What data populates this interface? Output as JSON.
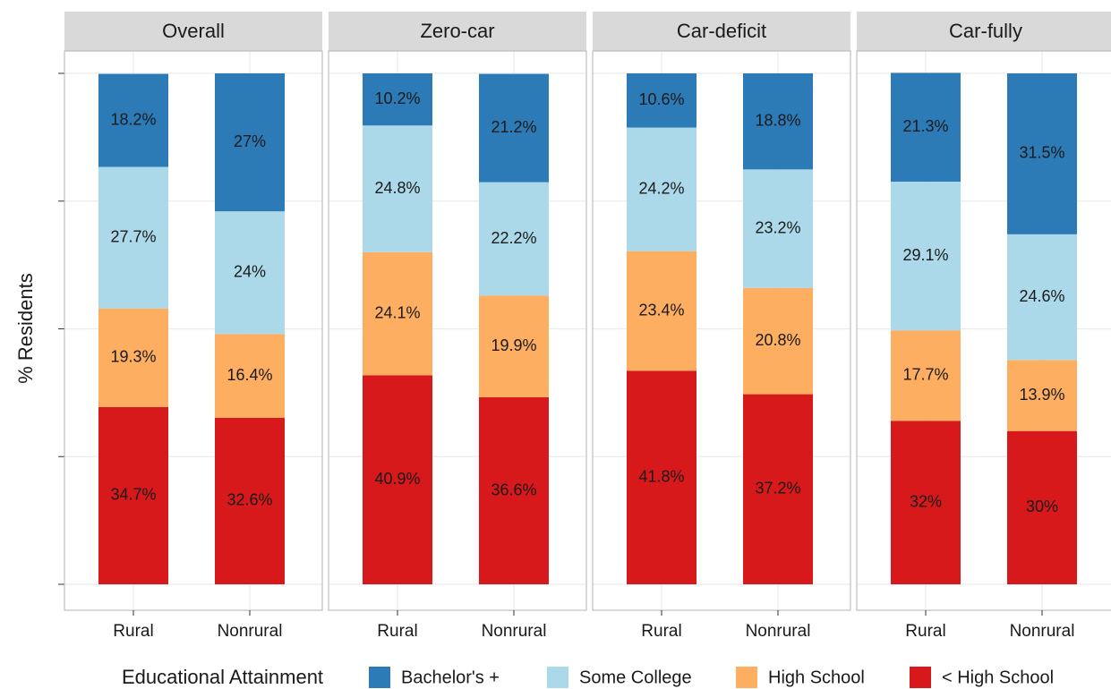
{
  "chart_data": [
    {
      "type": "bar",
      "stacked": true,
      "title": "Overall",
      "ylabel": "% Residents",
      "legend_title": "Educational Attainment",
      "categories": [
        "Rural",
        "Nonrural"
      ],
      "ylim": [
        0,
        100
      ],
      "yticks": [
        0,
        25,
        50,
        75,
        100
      ],
      "grid": true,
      "series": [
        {
          "name": "Bachelor's +",
          "color": "#2c7bb6",
          "values": [
            18.2,
            27
          ],
          "value_labels": [
            "18.2%",
            "27%"
          ]
        },
        {
          "name": "Some College",
          "color": "#abd9e9",
          "values": [
            27.7,
            24
          ],
          "value_labels": [
            "27.7%",
            "24%"
          ]
        },
        {
          "name": "High School",
          "color": "#fdae61",
          "values": [
            19.3,
            16.4
          ],
          "value_labels": [
            "19.3%",
            "16.4%"
          ]
        },
        {
          "name": "< High School",
          "color": "#d7191c",
          "values": [
            34.7,
            32.6
          ],
          "value_labels": [
            "34.7%",
            "32.6%"
          ]
        }
      ]
    },
    {
      "type": "bar",
      "stacked": true,
      "title": "Zero-car",
      "categories": [
        "Rural",
        "Nonrural"
      ],
      "ylim": [
        0,
        100
      ],
      "yticks": [
        0,
        25,
        50,
        75,
        100
      ],
      "grid": true,
      "series": [
        {
          "name": "Bachelor's +",
          "color": "#2c7bb6",
          "values": [
            10.2,
            21.2
          ],
          "value_labels": [
            "10.2%",
            "21.2%"
          ]
        },
        {
          "name": "Some College",
          "color": "#abd9e9",
          "values": [
            24.8,
            22.2
          ],
          "value_labels": [
            "24.8%",
            "22.2%"
          ]
        },
        {
          "name": "High School",
          "color": "#fdae61",
          "values": [
            24.1,
            19.9
          ],
          "value_labels": [
            "24.1%",
            "19.9%"
          ]
        },
        {
          "name": "< High School",
          "color": "#d7191c",
          "values": [
            40.9,
            36.6
          ],
          "value_labels": [
            "40.9%",
            "36.6%"
          ]
        }
      ]
    },
    {
      "type": "bar",
      "stacked": true,
      "title": "Car-deficit",
      "categories": [
        "Rural",
        "Nonrural"
      ],
      "ylim": [
        0,
        100
      ],
      "yticks": [
        0,
        25,
        50,
        75,
        100
      ],
      "grid": true,
      "series": [
        {
          "name": "Bachelor's +",
          "color": "#2c7bb6",
          "values": [
            10.6,
            18.8
          ],
          "value_labels": [
            "10.6%",
            "18.8%"
          ]
        },
        {
          "name": "Some College",
          "color": "#abd9e9",
          "values": [
            24.2,
            23.2
          ],
          "value_labels": [
            "24.2%",
            "23.2%"
          ]
        },
        {
          "name": "High School",
          "color": "#fdae61",
          "values": [
            23.4,
            20.8
          ],
          "value_labels": [
            "23.4%",
            "20.8%"
          ]
        },
        {
          "name": "< High School",
          "color": "#d7191c",
          "values": [
            41.8,
            37.2
          ],
          "value_labels": [
            "41.8%",
            "37.2%"
          ]
        }
      ]
    },
    {
      "type": "bar",
      "stacked": true,
      "title": "Car-fully",
      "categories": [
        "Rural",
        "Nonrural"
      ],
      "ylim": [
        0,
        100
      ],
      "yticks": [
        0,
        25,
        50,
        75,
        100
      ],
      "grid": true,
      "series": [
        {
          "name": "Bachelor's +",
          "color": "#2c7bb6",
          "values": [
            21.3,
            31.5
          ],
          "value_labels": [
            "21.3%",
            "31.5%"
          ]
        },
        {
          "name": "Some College",
          "color": "#abd9e9",
          "values": [
            29.1,
            24.6
          ],
          "value_labels": [
            "29.1%",
            "24.6%"
          ]
        },
        {
          "name": "High School",
          "color": "#fdae61",
          "values": [
            17.7,
            13.9
          ],
          "value_labels": [
            "17.7%",
            "13.9%"
          ]
        },
        {
          "name": "< High School",
          "color": "#d7191c",
          "values": [
            32,
            30
          ],
          "value_labels": [
            "32%",
            "30%"
          ]
        }
      ]
    }
  ]
}
